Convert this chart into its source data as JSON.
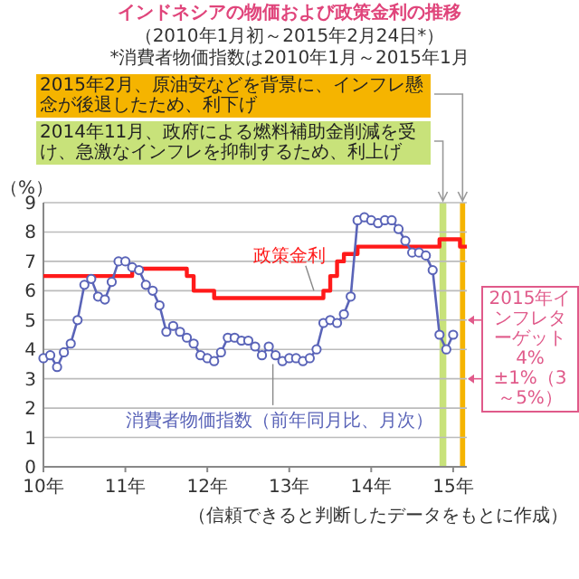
{
  "chart_data": {
    "type": "line",
    "title": "インドネシアの物価および政策金利の推移",
    "subtitle": "（2010年1月初～2015年2月24日*）",
    "annotations": [
      "*消費者物価指数は2010年1月～2015年1月",
      {
        "text": "2015年インフレターゲット4%±1%（3～5%）",
        "x": "2015-03",
        "y": 4
      },
      "（信頼できると判断したデータをもとに作成）"
    ],
    "ylabel": "（%）",
    "xlim": [
      "2010-01",
      "2015-03"
    ],
    "ylim": [
      0,
      9
    ],
    "yticks": [
      0,
      1,
      2,
      3,
      4,
      5,
      6,
      7,
      8,
      9
    ],
    "xticks": [
      {
        "value": "2010-01",
        "label": "10年"
      },
      {
        "value": "2011-01",
        "label": "11年"
      },
      {
        "value": "2012-01",
        "label": "12年"
      },
      {
        "value": "2013-01",
        "label": "13年"
      },
      {
        "value": "2014-01",
        "label": "14年"
      },
      {
        "value": "2015-01",
        "label": "15年"
      }
    ],
    "grid": "y",
    "legend": false,
    "bands": [
      {
        "axis": "x",
        "from": "2014-11-01",
        "to": "2014-12-01",
        "label": "2014年11月、政府による燃料補助金削減を受け、急激なインフレを抑制するため、利上げ",
        "color": "#c8e27a"
      },
      {
        "axis": "x",
        "from": "2015-02-01",
        "to": "2015-02-24",
        "label": "2015年2月、原油安などを背景に、インフレ懸念が後退したため、利下げ",
        "color": "#f5b400"
      }
    ],
    "series": [
      {
        "name": "政策金利",
        "type": "step",
        "color": "#ff1a1a",
        "marker": "none",
        "x": [
          "2010-01",
          "2011-02",
          "2011-10",
          "2011-11",
          "2012-02",
          "2013-06",
          "2013-07",
          "2013-08",
          "2013-09",
          "2013-11",
          "2014-11",
          "2015-02",
          "2015-03"
        ],
        "values": [
          6.5,
          6.75,
          6.5,
          6.0,
          5.75,
          6.0,
          6.5,
          7.0,
          7.25,
          7.5,
          7.75,
          7.5,
          7.5
        ]
      },
      {
        "name": "消費者物価指数（前年同月比、月次）",
        "type": "line",
        "color": "#5a64b8",
        "marker": "circle",
        "x": [
          "2010-01",
          "2010-02",
          "2010-03",
          "2010-04",
          "2010-05",
          "2010-06",
          "2010-07",
          "2010-08",
          "2010-09",
          "2010-10",
          "2010-11",
          "2010-12",
          "2011-01",
          "2011-02",
          "2011-03",
          "2011-04",
          "2011-05",
          "2011-06",
          "2011-07",
          "2011-08",
          "2011-09",
          "2011-10",
          "2011-11",
          "2011-12",
          "2012-01",
          "2012-02",
          "2012-03",
          "2012-04",
          "2012-05",
          "2012-06",
          "2012-07",
          "2012-08",
          "2012-09",
          "2012-10",
          "2012-11",
          "2012-12",
          "2013-01",
          "2013-02",
          "2013-03",
          "2013-04",
          "2013-05",
          "2013-06",
          "2013-07",
          "2013-08",
          "2013-09",
          "2013-10",
          "2013-11",
          "2013-12",
          "2014-01",
          "2014-02",
          "2014-03",
          "2014-04",
          "2014-05",
          "2014-06",
          "2014-07",
          "2014-08",
          "2014-09",
          "2014-10",
          "2014-11",
          "2014-12",
          "2015-01"
        ],
        "values": [
          3.7,
          3.8,
          3.4,
          3.9,
          4.2,
          5.0,
          6.2,
          6.4,
          5.8,
          5.7,
          6.3,
          7.0,
          7.0,
          6.8,
          6.7,
          6.2,
          6.0,
          5.5,
          4.6,
          4.8,
          4.6,
          4.4,
          4.2,
          3.8,
          3.7,
          3.6,
          3.9,
          4.4,
          4.4,
          4.3,
          4.3,
          4.1,
          3.8,
          4.1,
          3.8,
          3.6,
          3.7,
          3.7,
          3.6,
          3.7,
          4.0,
          4.9,
          5.0,
          4.9,
          5.2,
          5.8,
          8.4,
          8.5,
          8.4,
          8.3,
          8.4,
          8.4,
          8.1,
          7.7,
          7.3,
          7.3,
          7.2,
          6.7,
          4.5,
          4.0,
          4.5
        ]
      }
    ]
  }
}
